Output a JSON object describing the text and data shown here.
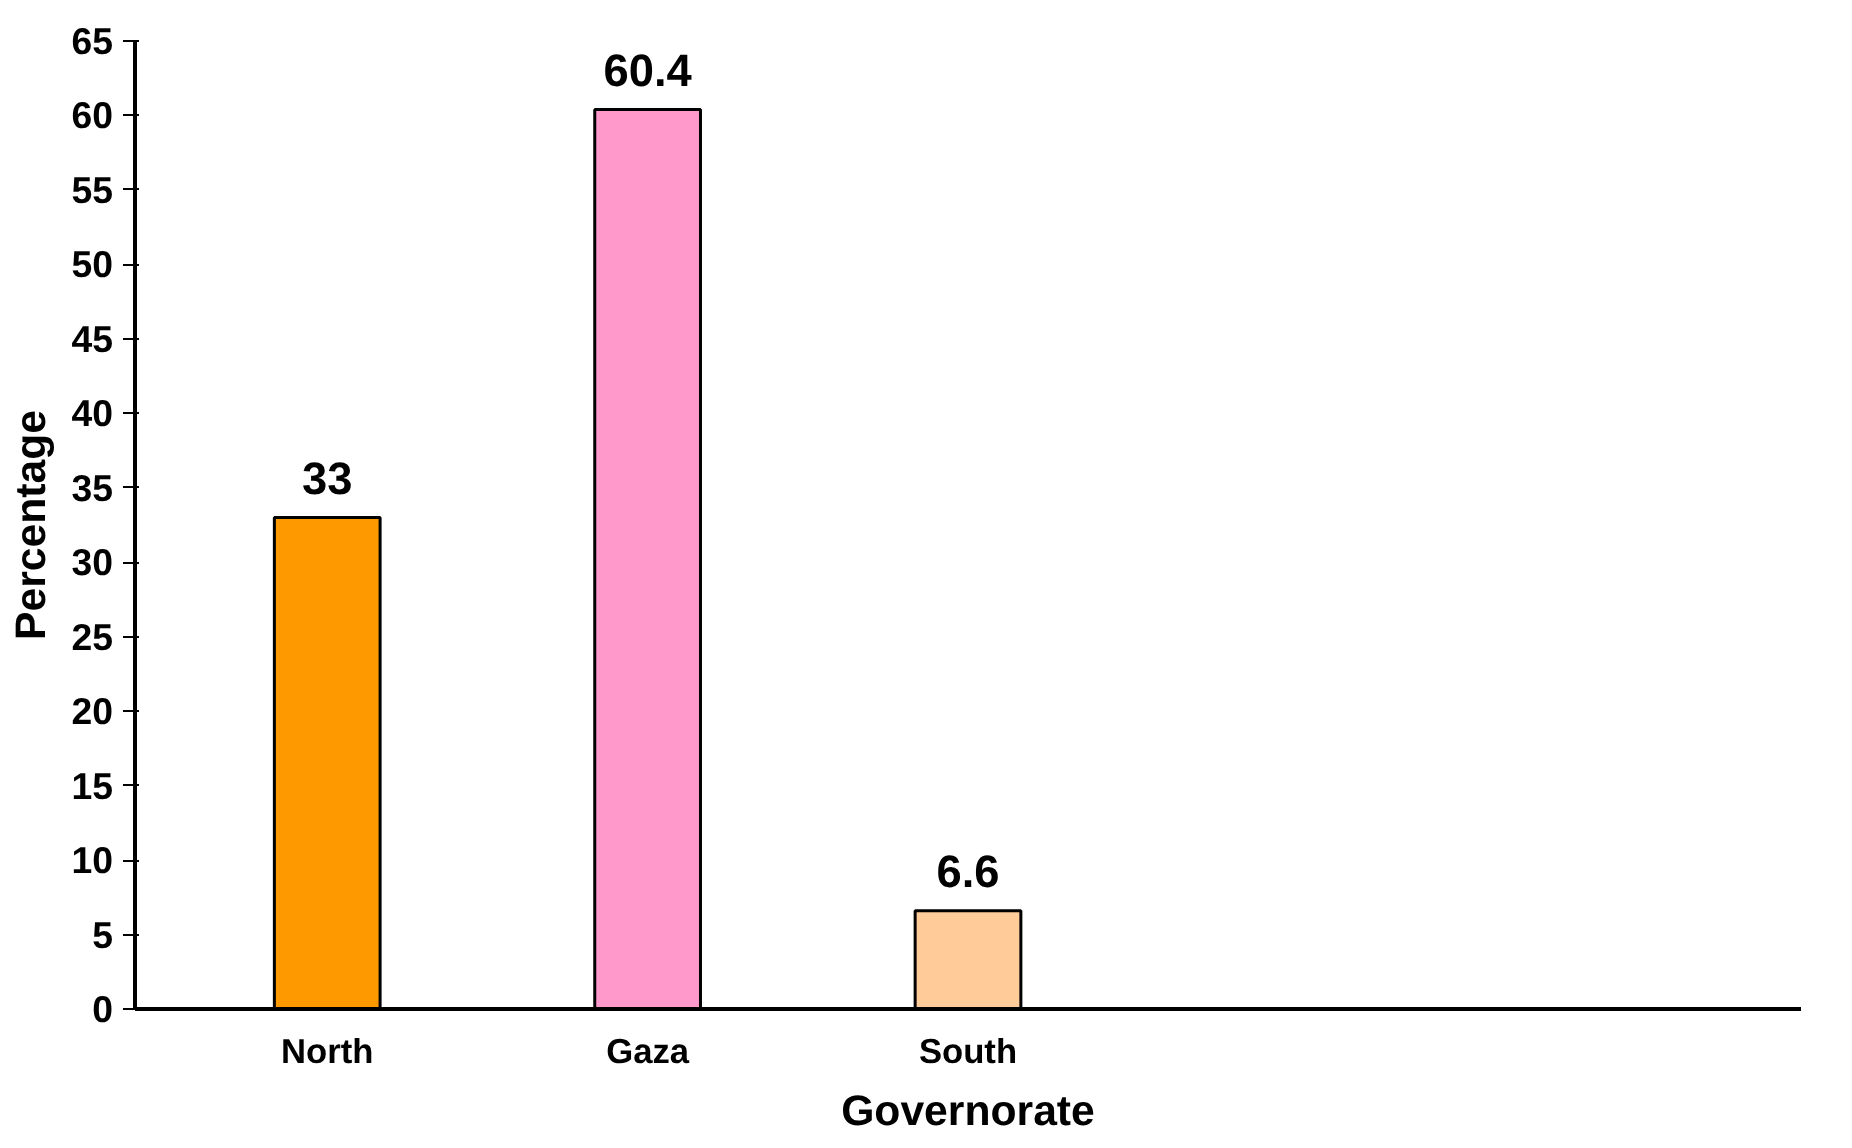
{
  "chart_data": {
    "type": "bar",
    "xlabel": "Governorate",
    "ylabel": "Percentage",
    "categories": [
      "North",
      "Gaza",
      "South"
    ],
    "values": [
      33,
      60.4,
      6.6
    ],
    "colors": [
      "#ff9900",
      "#ff99cc",
      "#ffcc99"
    ],
    "ylim": [
      0,
      65
    ],
    "yticks": [
      0,
      5,
      10,
      15,
      20,
      25,
      30,
      35,
      40,
      45,
      50,
      55,
      60,
      65
    ],
    "data_labels": true,
    "grid": false
  }
}
